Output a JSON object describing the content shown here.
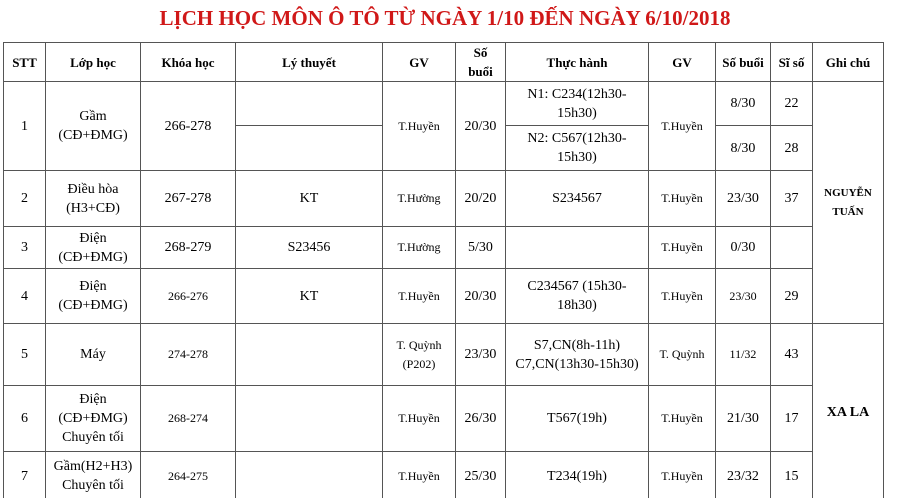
{
  "header": {
    "title": "LỊCH HỌC MÔN Ô TÔ TỪ NGÀY 1/10 ĐẾN NGÀY 6/10/2018"
  },
  "table": {
    "columns": [
      "STT",
      "Lớp học",
      "Khóa học",
      "Lý thuyết",
      "GV",
      "Số buổi",
      "Thực hành",
      "GV",
      "Số buổi",
      "Sĩ số",
      "Ghi chú"
    ],
    "rows": [
      {
        "stt": "1",
        "class": "Gầm (CĐ+ĐMG)",
        "course": "266-278",
        "teacher": "T.Huyền",
        "sessions": "20/30",
        "practice": [
          "N1: C234(12h30-15h30)",
          "N2: C567(12h30-15h30)"
        ],
        "practice_teacher": "T.Huyền",
        "practice_sessions": [
          "8/30",
          "8/30"
        ],
        "students": [
          "22",
          "28"
        ]
      },
      {
        "stt": "2",
        "class": "Điều hòa (H3+CĐ)",
        "course": "267-278",
        "theory": "KT",
        "teacher": "T.Hường",
        "sessions": "20/20",
        "practice": "S234567",
        "practice_teacher": "T.Huyền",
        "practice_sessions": "23/30",
        "students": "37"
      },
      {
        "stt": "3",
        "class": "Điện (CĐ+ĐMG)",
        "course": "268-279",
        "theory": "S23456",
        "teacher": "T.Hường",
        "sessions": "5/30",
        "practice_teacher": "T.Huyền",
        "practice_sessions": "0/30"
      },
      {
        "stt": "4",
        "class": "Điện (CĐ+ĐMG)",
        "course": "266-276",
        "theory": "KT",
        "teacher": "T.Huyền",
        "sessions": "20/30",
        "practice": "C234567 (15h30-18h30)",
        "practice_teacher": "T.Huyền",
        "practice_sessions": "23/30",
        "students": "29"
      },
      {
        "stt": "5",
        "class": "Máy",
        "course": "274-278",
        "teacher": "T. Quỳnh (P202)",
        "sessions": "23/30",
        "practice": "S7,CN(8h-11h) C7,CN(13h30-15h30)",
        "practice_teacher": "T. Quỳnh",
        "practice_sessions": "11/32",
        "students": "43"
      },
      {
        "stt": "6",
        "class": "Điện (CĐ+ĐMG) Chuyên tối",
        "course": "268-274",
        "teacher": "T.Huyền",
        "sessions": "26/30",
        "practice": "T567(19h)",
        "practice_teacher": "T.Huyền",
        "practice_sessions": "21/30",
        "students": "17"
      },
      {
        "stt": "7",
        "class": "Gầm(H2+H3) Chuyên tối",
        "course": "264-275",
        "teacher": "T.Huyền",
        "sessions": "25/30",
        "practice": "T234(19h)",
        "practice_teacher": "T.Huyền",
        "practice_sessions": "23/32",
        "students": "15"
      }
    ],
    "notes": [
      "NGUYỄN TUẤN",
      "XA LA"
    ]
  }
}
